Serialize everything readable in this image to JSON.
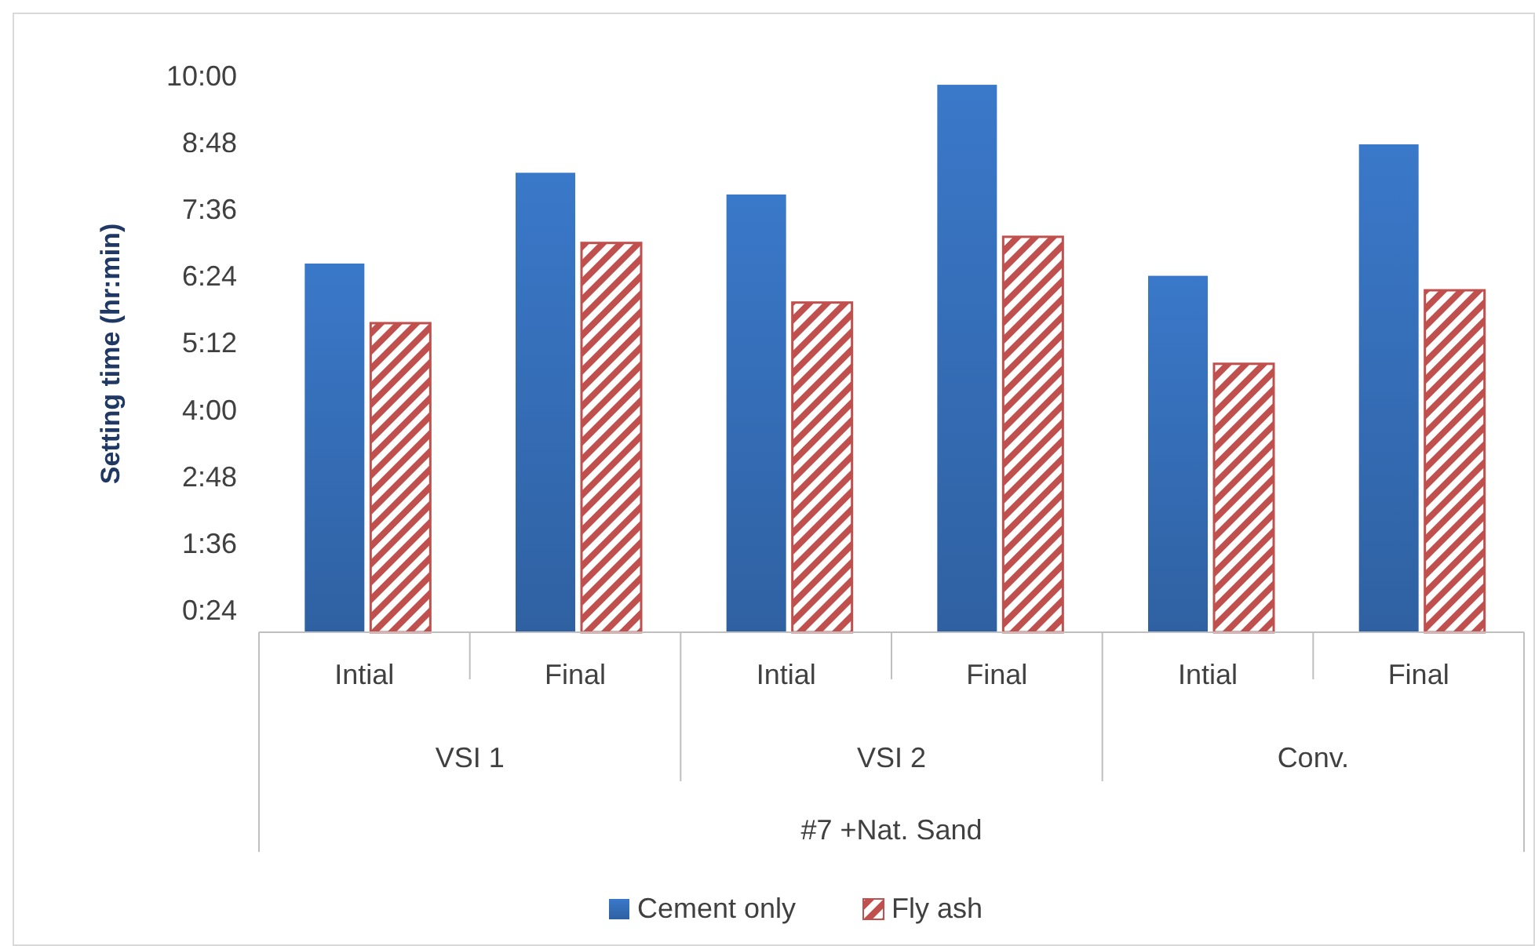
{
  "chart_data": {
    "type": "bar",
    "ylabel": "Setting time (hr:min)",
    "xlabel": "#7 +Nat. Sand",
    "categories": [
      "Intial",
      "Final",
      "Intial",
      "Final",
      "Intial",
      "Final"
    ],
    "annotations": [
      "VSI 1",
      "VSI 2",
      "Conv."
    ],
    "series": [
      {
        "name": "Cement only",
        "color": "#3a78c9",
        "values": [
          6.62,
          8.25,
          7.86,
          9.83,
          6.4,
          8.76
        ]
      },
      {
        "name": "Fly ash",
        "color": "#c0504d",
        "values": [
          5.55,
          6.99,
          5.92,
          7.1,
          4.82,
          6.14
        ]
      }
    ],
    "ylim": [
      0,
      10
    ],
    "yticks": [
      {
        "value": 0.4,
        "label": "0:24"
      },
      {
        "value": 1.6,
        "label": "1:36"
      },
      {
        "value": 2.8,
        "label": "2:48"
      },
      {
        "value": 4,
        "label": "4:00"
      },
      {
        "value": 5.2,
        "label": "5:12"
      },
      {
        "value": 6.4,
        "label": "6:24"
      },
      {
        "value": 7.6,
        "label": "7:36"
      },
      {
        "value": 8.8,
        "label": "8:48"
      },
      {
        "value": 10,
        "label": "10:00"
      }
    ],
    "grid": false,
    "legend": "bottom"
  }
}
